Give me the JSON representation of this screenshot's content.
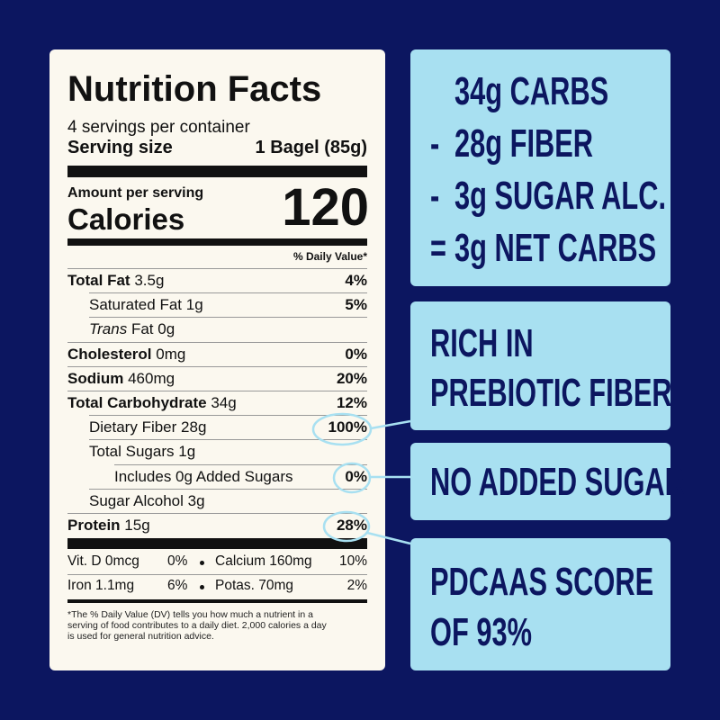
{
  "nutrition_facts": {
    "title": "Nutrition Facts",
    "servings": "4 servings per container",
    "serving_size_label": "Serving size",
    "serving_size_value": "1 Bagel (85g)",
    "amount_per_serving": "Amount per serving",
    "calories_label": "Calories",
    "calories_value": "120",
    "daily_value_header": "% Daily Value*",
    "rows": [
      {
        "name": "Total Fat",
        "amount": "3.5g",
        "dv": "4%",
        "style": "bold"
      },
      {
        "name": "Saturated Fat",
        "amount": "1g",
        "dv": "5%",
        "style": "indent"
      },
      {
        "name": "Trans",
        "name_rest": "Fat",
        "amount": "0g",
        "style": "indent"
      },
      {
        "name": "Cholesterol",
        "amount": "0mg",
        "dv": "0%",
        "style": "bold"
      },
      {
        "name": "Sodium",
        "amount": "460mg",
        "dv": "20%",
        "style": "bold"
      },
      {
        "name": "Total Carbohydrate",
        "amount": "34g",
        "dv": "12%",
        "style": "bold"
      },
      {
        "name": "Dietary Fiber",
        "amount": "28g",
        "dv": "100%",
        "style": "indent"
      },
      {
        "name": "Total Sugars",
        "amount": "1g",
        "style": "indent"
      },
      {
        "name": "Includes 0g Added Sugars",
        "dv": "0%",
        "style": "indent2"
      },
      {
        "name": "Sugar Alcohol",
        "amount": "3g",
        "style": "indent"
      },
      {
        "name": "Protein",
        "amount": "15g",
        "dv": "28%",
        "style": "bold"
      }
    ],
    "micronutrients": [
      [
        "Vit. D 0mcg",
        "0%",
        "Calcium 160mg",
        "10%"
      ],
      [
        "Iron 1.1mg",
        "6%",
        "Potas. 70mg",
        "2%"
      ]
    ],
    "footnote": [
      "*The % Daily Value (DV) tells you how much a nutrient in a",
      "serving of food contributes to a daily diet. 2,000 calories a day",
      "is used for general nutrition advice."
    ]
  },
  "callouts": [
    {
      "lines": [
        {
          "text": "34g CARBS"
        },
        {
          "op": "-",
          "text": "28g FIBER"
        },
        {
          "op": "-",
          "text": "3g SUGAR ALC."
        },
        {
          "op": "=",
          "text": "3g NET CARBS"
        }
      ]
    },
    {
      "lines": [
        {
          "text": "RICH IN"
        },
        {
          "text": "PREBIOTIC FIBER"
        }
      ]
    },
    {
      "lines": [
        {
          "text": "NO ADDED SUGAR"
        }
      ]
    },
    {
      "lines": [
        {
          "text": "PDCAAS SCORE"
        },
        {
          "text": "OF 93%"
        }
      ]
    }
  ]
}
